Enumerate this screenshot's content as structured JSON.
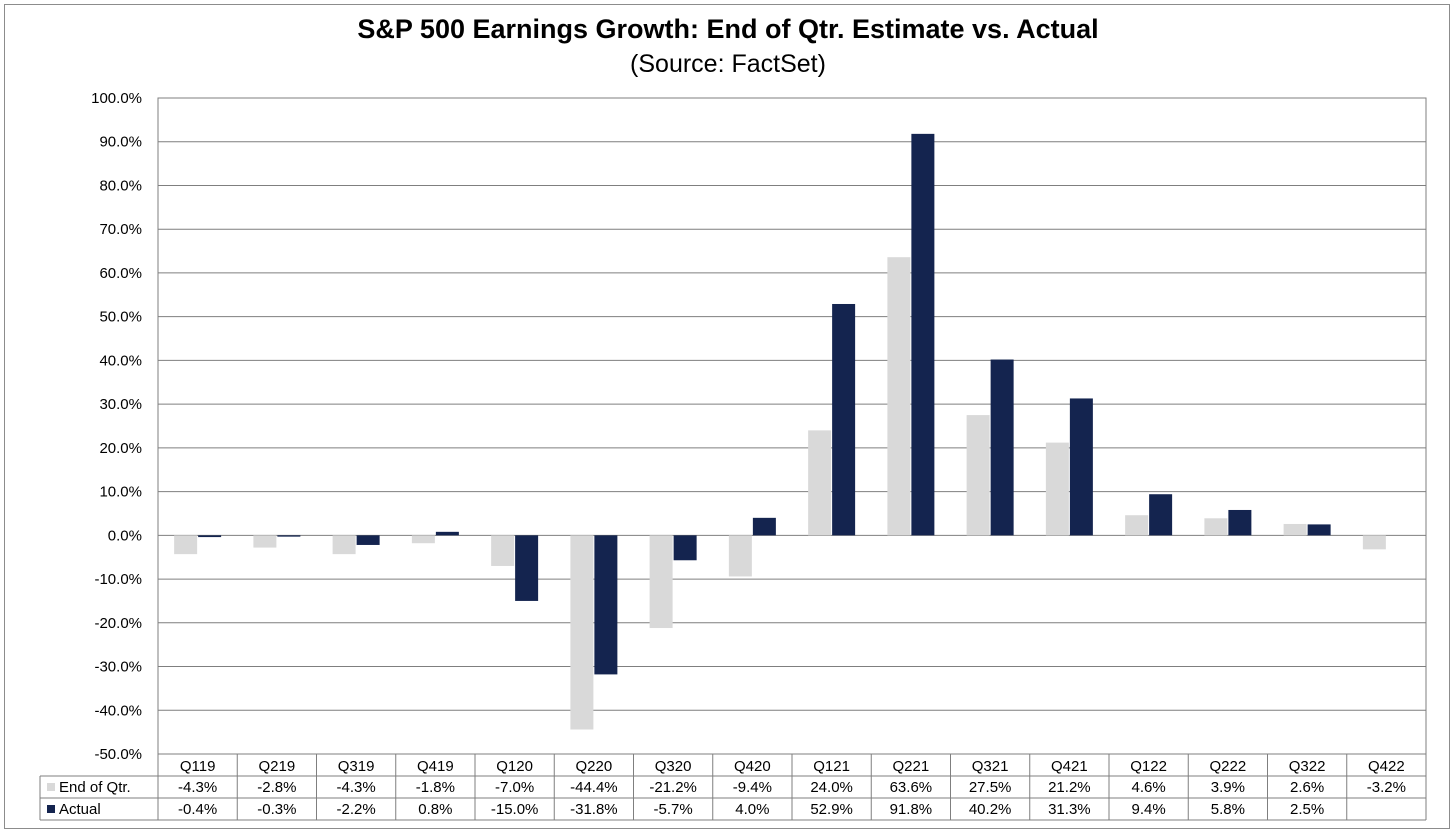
{
  "chart_data": {
    "type": "bar",
    "title": "S&P 500 Earnings Growth: End of Qtr. Estimate vs. Actual",
    "subtitle": "(Source: FactSet)",
    "categories": [
      "Q119",
      "Q219",
      "Q319",
      "Q419",
      "Q120",
      "Q220",
      "Q320",
      "Q420",
      "Q121",
      "Q221",
      "Q321",
      "Q421",
      "Q122",
      "Q222",
      "Q322",
      "Q422"
    ],
    "series": [
      {
        "name": "End of Qtr.",
        "color": "#d9d9d9",
        "values": [
          -4.3,
          -2.8,
          -4.3,
          -1.8,
          -7.0,
          -44.4,
          -21.2,
          -9.4,
          24.0,
          63.6,
          27.5,
          21.2,
          4.6,
          3.9,
          2.6,
          -3.2
        ],
        "labels": [
          "-4.3%",
          "-2.8%",
          "-4.3%",
          "-1.8%",
          "-7.0%",
          "-44.4%",
          "-21.2%",
          "-9.4%",
          "24.0%",
          "63.6%",
          "27.5%",
          "21.2%",
          "4.6%",
          "3.9%",
          "2.6%",
          "-3.2%"
        ]
      },
      {
        "name": "Actual",
        "color": "#14244f",
        "values": [
          -0.4,
          -0.3,
          -2.2,
          0.8,
          -15.0,
          -31.8,
          -5.7,
          4.0,
          52.9,
          91.8,
          40.2,
          31.3,
          9.4,
          5.8,
          2.5,
          null
        ],
        "labels": [
          "-0.4%",
          "-0.3%",
          "-2.2%",
          "0.8%",
          "-15.0%",
          "-31.8%",
          "-5.7%",
          "4.0%",
          "52.9%",
          "91.8%",
          "40.2%",
          "31.3%",
          "9.4%",
          "5.8%",
          "2.5%",
          ""
        ]
      }
    ],
    "ylim": [
      -50,
      100
    ],
    "yticks": [
      100,
      90,
      80,
      70,
      60,
      50,
      40,
      30,
      20,
      10,
      0,
      -10,
      -20,
      -30,
      -40,
      -50
    ],
    "ytick_labels": [
      "100.0%",
      "90.0%",
      "80.0%",
      "70.0%",
      "60.0%",
      "50.0%",
      "40.0%",
      "30.0%",
      "20.0%",
      "10.0%",
      "0.0%",
      "-10.0%",
      "-20.0%",
      "-30.0%",
      "-40.0%",
      "-50.0%"
    ],
    "grid": true,
    "legend": "data-table-bottom"
  }
}
